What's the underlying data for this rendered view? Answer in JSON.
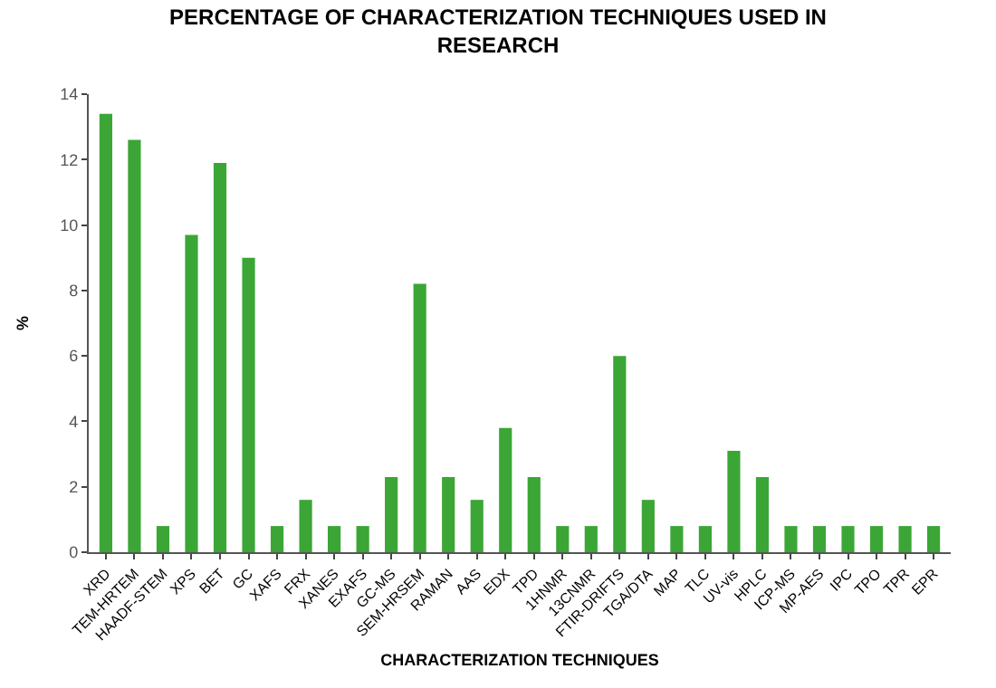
{
  "chart_data": {
    "type": "bar",
    "title": "PERCENTAGE OF CHARACTERIZATION TECHNIQUES USED IN RESEARCH",
    "xlabel": "CHARACTERIZATION TECHNIQUES",
    "ylabel": "%",
    "categories": [
      "XRD",
      "TEM-HRTEM",
      "HAADF-STEM",
      "XPS",
      "BET",
      "GC",
      "XAFS",
      "FRX",
      "XANES",
      "EXAFS",
      "GC-MS",
      "SEM-HRSEM",
      "RAMAN",
      "AAS",
      "EDX",
      "TPD",
      "1HNMR",
      "13CNMR",
      "FTIR-DRIFTS",
      "TGA/DTA",
      "MAP",
      "TLC",
      "UV-vis",
      "HPLC",
      "ICP-MS",
      "MP-AES",
      "IPC",
      "TPO",
      "TPR",
      "EPR"
    ],
    "values": [
      13.4,
      12.6,
      0.8,
      9.7,
      11.9,
      9.0,
      0.8,
      1.6,
      0.8,
      0.8,
      2.3,
      8.2,
      2.3,
      1.6,
      3.8,
      2.3,
      0.8,
      0.8,
      6.0,
      1.6,
      0.8,
      0.8,
      3.1,
      2.3,
      0.8,
      0.8,
      0.8,
      0.8,
      0.8,
      0.8
    ],
    "color": "#3ba636",
    "ylim": [
      0,
      14
    ],
    "yticks": [
      0,
      2,
      4,
      6,
      8,
      10,
      12,
      14
    ]
  }
}
